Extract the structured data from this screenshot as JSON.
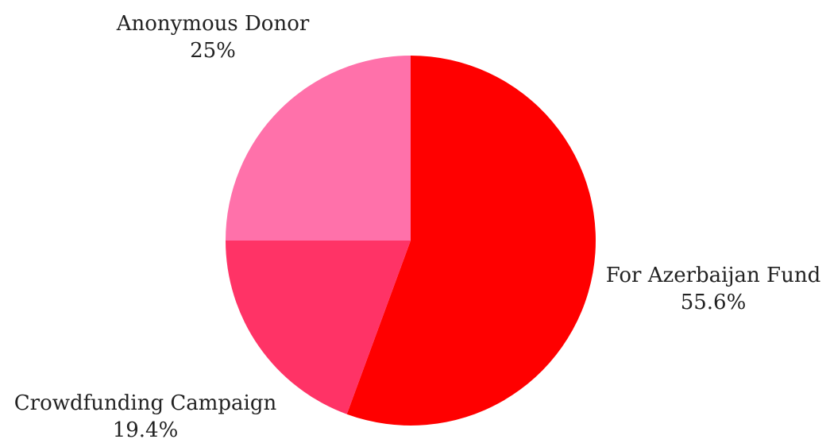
{
  "chart_data": {
    "type": "pie",
    "slices": [
      {
        "label": "For Azerbaijan Fund",
        "value": 55.6,
        "display": "55.6%",
        "color": "#ff0000"
      },
      {
        "label": "Crowdfunding Campaign",
        "value": 19.4,
        "display": "19.4%",
        "color": "#ff3366"
      },
      {
        "label": "Anonymous Donor",
        "value": 25,
        "display": "25%",
        "color": "#ff71aa"
      }
    ],
    "start_angle": "12 o'clock",
    "direction": "clockwise",
    "legend": "none",
    "title": ""
  }
}
